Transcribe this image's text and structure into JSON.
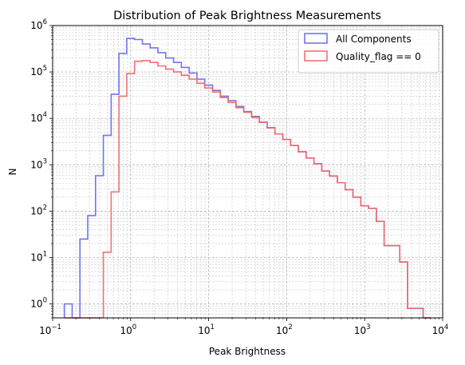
{
  "chart_data": {
    "type": "histogram-step",
    "title": "Distribution of Peak Brightness Measurements",
    "xlabel": "Peak Brightness",
    "ylabel": "N",
    "xscale": "log",
    "yscale": "log",
    "xlim": [
      0.1,
      10000
    ],
    "ylim": [
      0.5,
      1000000
    ],
    "x_tick_values": [
      0.1,
      1,
      10,
      100,
      1000,
      10000
    ],
    "x_tick_base": "10",
    "x_tick_exponents": [
      "−1",
      "0",
      "1",
      "2",
      "3",
      "4"
    ],
    "y_tick_values": [
      1,
      10,
      100,
      1000,
      10000,
      100000,
      1000000
    ],
    "y_tick_base": "10",
    "y_tick_exponents": [
      "0",
      "1",
      "2",
      "3",
      "4",
      "5",
      "6"
    ],
    "grid": true,
    "legend_position": "top-right",
    "bin_edges_log10": [
      -0.85,
      -0.75,
      -0.65,
      -0.55,
      -0.45,
      -0.35,
      -0.25,
      -0.15,
      -0.05,
      0.05,
      0.15,
      0.25,
      0.35,
      0.45,
      0.55,
      0.65,
      0.75,
      0.85,
      0.95,
      1.05,
      1.15,
      1.25,
      1.35,
      1.45,
      1.55,
      1.65,
      1.75,
      1.85,
      1.95,
      2.05,
      2.15,
      2.25,
      2.35,
      2.45,
      2.55,
      2.65,
      2.75,
      2.85,
      2.95,
      3.05,
      3.15,
      3.25,
      3.35,
      3.45,
      3.55,
      3.65,
      3.75,
      3.85
    ],
    "series": [
      {
        "name": "All Components",
        "color": "#6b6bef",
        "counts": [
          1,
          0,
          25,
          80,
          580,
          4300,
          33000,
          250000,
          530000,
          500000,
          400000,
          330000,
          260000,
          200000,
          160000,
          125000,
          95000,
          70000,
          52000,
          40000,
          30000,
          24000,
          18000,
          14000,
          11000,
          8300,
          6300,
          4600,
          3500,
          2600,
          1900,
          1400,
          1050,
          730,
          570,
          410,
          290,
          200,
          130,
          115,
          60,
          18,
          18,
          8,
          0.8,
          0.8,
          0.4
        ]
      },
      {
        "name": "Quality_flag == 0",
        "color": "#f06a6a",
        "counts": [
          0,
          0,
          0,
          0,
          0,
          13,
          260,
          30000,
          92000,
          170000,
          175000,
          160000,
          135000,
          115000,
          100000,
          85000,
          70000,
          57000,
          45000,
          37000,
          28000,
          22000,
          17000,
          13500,
          10500,
          8200,
          6200,
          4600,
          3500,
          2600,
          1900,
          1400,
          1050,
          730,
          570,
          410,
          290,
          200,
          130,
          115,
          60,
          18,
          18,
          8,
          0.8,
          0.8,
          0.4
        ]
      }
    ]
  }
}
